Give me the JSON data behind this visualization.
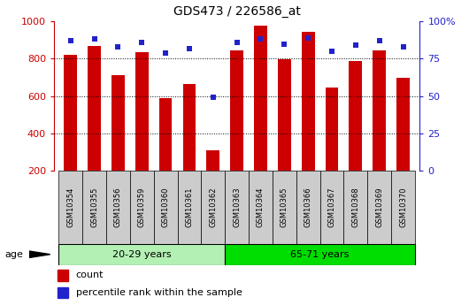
{
  "title": "GDS473 / 226586_at",
  "samples": [
    "GSM10354",
    "GSM10355",
    "GSM10356",
    "GSM10359",
    "GSM10360",
    "GSM10361",
    "GSM10362",
    "GSM10363",
    "GSM10364",
    "GSM10365",
    "GSM10366",
    "GSM10367",
    "GSM10368",
    "GSM10369",
    "GSM10370"
  ],
  "counts": [
    820,
    870,
    710,
    835,
    590,
    665,
    310,
    845,
    975,
    795,
    945,
    645,
    790,
    845,
    700
  ],
  "percentiles": [
    87,
    88,
    83,
    86,
    79,
    82,
    49,
    86,
    88,
    85,
    89,
    80,
    84,
    87,
    83
  ],
  "group1_label": "20-29 years",
  "group2_label": "65-71 years",
  "group1_count": 7,
  "group2_count": 8,
  "bar_color": "#cc0000",
  "dot_color": "#2222cc",
  "group1_bg": "#b3f0b3",
  "group2_bg": "#00dd00",
  "tick_bg": "#cccccc",
  "ylim_left": [
    200,
    1000
  ],
  "ylim_right": [
    0,
    100
  ],
  "yticks_left": [
    200,
    400,
    600,
    800,
    1000
  ],
  "yticks_right": [
    0,
    25,
    50,
    75,
    100
  ],
  "grid_lines": [
    400,
    600,
    800
  ],
  "age_label": "age",
  "legend_count": "count",
  "legend_percentile": "percentile rank within the sample",
  "bar_width": 0.55
}
